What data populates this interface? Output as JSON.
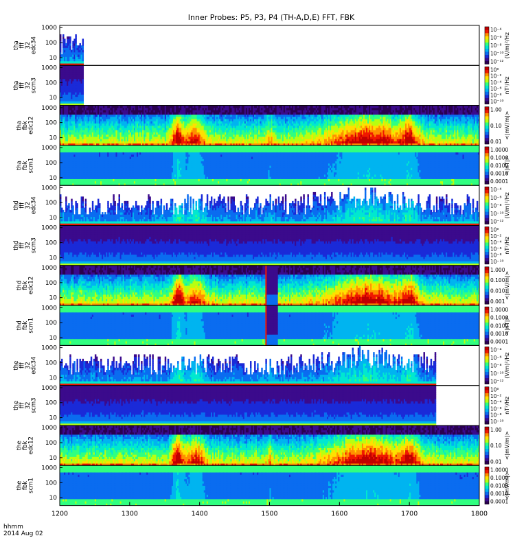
{
  "chart_data": {
    "type": "heatmap",
    "title": "Inner Probes: P5, P3, P4 (TH-A,D,E) FFT, FBK",
    "x_ticks": [
      "1200",
      "1300",
      "1400",
      "1500",
      "1600",
      "1700",
      "1800"
    ],
    "x_tick_values": [
      1200,
      1300,
      1400,
      1500,
      1600,
      1700,
      1800
    ],
    "xlim": [
      1200,
      1800
    ],
    "x_label": [
      "hhmm",
      "2014 Aug 02"
    ],
    "y_ticks": [
      "10",
      "100",
      "1000"
    ],
    "y_tick_values": [
      10,
      100,
      1000
    ],
    "ylim": [
      3,
      1400
    ],
    "y_scale": "log",
    "panels": [
      {
        "label": [
          "tha",
          "fff",
          "32",
          "edc34"
        ],
        "units": "(V/m)²/Hz",
        "scale": "log",
        "cbar_ticks": [
          "10⁻⁴",
          "10⁻⁶",
          "10⁻⁸",
          "10⁻¹⁰",
          "10⁻¹²"
        ],
        "kind": "fff_e",
        "data_xrange": [
          1200,
          1234
        ]
      },
      {
        "label": [
          "tha",
          "fff",
          "32",
          "scm3"
        ],
        "units": "nT²/Hz",
        "scale": "log",
        "cbar_ticks": [
          "10⁰",
          "10⁻²",
          "10⁻⁴",
          "10⁻⁶",
          "10⁻⁸",
          "10⁻¹⁰"
        ],
        "kind": "fff_b",
        "data_xrange": [
          1200,
          1234
        ]
      },
      {
        "label": [
          "tha",
          "fbk",
          "edc12"
        ],
        "units": "<|mV/m|>",
        "scale": "log",
        "cbar_ticks": [
          "1.00",
          "0.10",
          "0.01"
        ],
        "kind": "fbk_e",
        "data_xrange": [
          1200,
          1800
        ]
      },
      {
        "label": [
          "tha",
          "fbk",
          "scm1"
        ],
        "units": "<|nT|>",
        "scale": "log",
        "cbar_ticks": [
          "1.0000",
          "0.1000",
          "0.0100",
          "0.0010",
          "0.0001"
        ],
        "kind": "fbk_b",
        "data_xrange": [
          1200,
          1800
        ]
      },
      {
        "label": [
          "thd",
          "fff",
          "32",
          "edc34"
        ],
        "units": "(V/m)²/Hz",
        "scale": "log",
        "cbar_ticks": [
          "10⁻⁴",
          "10⁻⁶",
          "10⁻⁸",
          "10⁻¹⁰",
          "10⁻¹²"
        ],
        "kind": "fff_e",
        "data_xrange": [
          1200,
          1800
        ]
      },
      {
        "label": [
          "thd",
          "fff",
          "32",
          "scm3"
        ],
        "units": "nT²/Hz",
        "scale": "log",
        "cbar_ticks": [
          "10⁰",
          "10⁻²",
          "10⁻⁴",
          "10⁻⁶",
          "10⁻⁸",
          "10⁻¹⁰"
        ],
        "kind": "fff_b",
        "data_xrange": [
          1200,
          1800
        ]
      },
      {
        "label": [
          "thd",
          "fbk",
          "edc12"
        ],
        "units": "<|mV/m|>",
        "scale": "log",
        "cbar_ticks": [
          "1.000",
          "0.100",
          "0.010",
          "0.001"
        ],
        "kind": "fbk_e",
        "data_xrange": [
          1200,
          1800
        ]
      },
      {
        "label": [
          "thd",
          "fbk",
          "scm1"
        ],
        "units": "<|nT|>",
        "scale": "log",
        "cbar_ticks": [
          "1.0000",
          "0.1000",
          "0.0100",
          "0.0010",
          "0.0001"
        ],
        "kind": "fbk_b",
        "data_xrange": [
          1200,
          1800
        ]
      },
      {
        "label": [
          "the",
          "fff",
          "32",
          "edc34"
        ],
        "units": "(V/m)²/Hz",
        "scale": "log",
        "cbar_ticks": [
          "10⁻⁴",
          "10⁻⁶",
          "10⁻⁸",
          "10⁻¹⁰",
          "10⁻¹²"
        ],
        "kind": "fff_e",
        "data_xrange": [
          1200,
          1738
        ]
      },
      {
        "label": [
          "the",
          "fff",
          "32",
          "scm3"
        ],
        "units": "nT²/Hz",
        "scale": "log",
        "cbar_ticks": [
          "10⁰",
          "10⁻²",
          "10⁻⁴",
          "10⁻⁶",
          "10⁻⁸",
          "10⁻¹⁰"
        ],
        "kind": "fff_b",
        "data_xrange": [
          1200,
          1738
        ]
      },
      {
        "label": [
          "the",
          "fbk",
          "edc12"
        ],
        "units": "<|mV/m|>",
        "scale": "log",
        "cbar_ticks": [
          "1.00",
          "0.10",
          "0.01"
        ],
        "kind": "fbk_e",
        "data_xrange": [
          1200,
          1800
        ]
      },
      {
        "label": [
          "the",
          "fbk",
          "scm1"
        ],
        "units": "<|mV/m|>",
        "scale": "log",
        "cbar_ticks": [
          "1.0000",
          "0.1000",
          "0.0100",
          "0.0010",
          "0.0001"
        ],
        "kind": "fbk_b",
        "data_xrange": [
          1200,
          1800
        ]
      }
    ],
    "colormap": [
      "#2a004f",
      "#3b0a8c",
      "#1a2ad8",
      "#0a6cf0",
      "#00b4f0",
      "#00e8d0",
      "#30ff80",
      "#b8ff10",
      "#ffe000",
      "#ff9000",
      "#f01800",
      "#c00000"
    ]
  }
}
